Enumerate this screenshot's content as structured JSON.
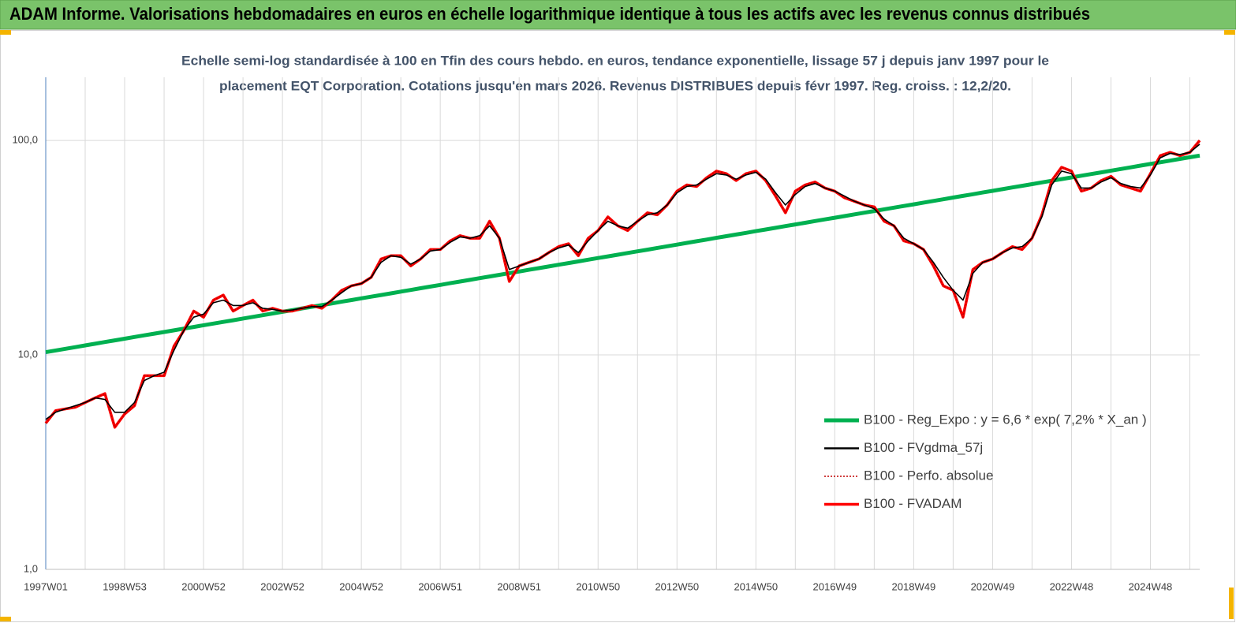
{
  "chart_data": {
    "type": "line",
    "title": "ADAM Informe. Valorisations hebdomadaires en euros en échelle logarithmique identique à tous les actifs avec les revenus connus distribués",
    "subtitle": [
      "Echelle semi-log standardisée à 100 en Tfin des cours hebdo. en euros, tendance exponentielle, lissage 57 j depuis janv 1997 pour le",
      "placement EQT Corporation. Cotations jusqu'en mars 2026.  Revenus DISTRIBUES depuis févr 1997. Reg. croiss. : 12,2/20."
    ],
    "log_scale": true,
    "grid": true,
    "legend": "right",
    "ylim": [
      1,
      197
    ],
    "yticks": [
      {
        "value": 1,
        "label": "1,0"
      },
      {
        "value": 10,
        "label": "10,0"
      },
      {
        "value": 100,
        "label": "100,0"
      }
    ],
    "categories": [
      "1997W01",
      null,
      null,
      null,
      null,
      null,
      null,
      null,
      "1998W53",
      null,
      null,
      null,
      null,
      null,
      null,
      null,
      "2000W52",
      null,
      null,
      null,
      null,
      null,
      null,
      null,
      "2002W52",
      null,
      null,
      null,
      null,
      null,
      null,
      null,
      "2004W52",
      null,
      null,
      null,
      null,
      null,
      null,
      null,
      "2006W51",
      null,
      null,
      null,
      null,
      null,
      null,
      null,
      "2008W51",
      null,
      null,
      null,
      null,
      null,
      null,
      null,
      "2010W50",
      null,
      null,
      null,
      null,
      null,
      null,
      null,
      "2012W50",
      null,
      null,
      null,
      null,
      null,
      null,
      null,
      "2014W50",
      null,
      null,
      null,
      null,
      null,
      null,
      null,
      "2016W49",
      null,
      null,
      null,
      null,
      null,
      null,
      null,
      "2018W49",
      null,
      null,
      null,
      null,
      null,
      null,
      null,
      "2020W49",
      null,
      null,
      null,
      null,
      null,
      null,
      null,
      "2022W48",
      null,
      null,
      null,
      null,
      null,
      null,
      null,
      "2024W48",
      null,
      null,
      null,
      null,
      null
    ],
    "series": [
      {
        "name": "B100 - Reg_Expo : y = 6,6 * exp( 7,2% *  X_an )",
        "color": "#00b050",
        "line_style": "solid",
        "values": [
          10.3,
          10.49,
          10.68,
          10.87,
          11.07,
          11.27,
          11.48,
          11.69,
          11.9,
          12.12,
          12.34,
          12.56,
          12.79,
          13.02,
          13.26,
          13.5,
          13.75,
          14.0,
          14.25,
          14.51,
          14.78,
          15.05,
          15.32,
          15.6,
          15.88,
          16.17,
          16.47,
          16.77,
          17.07,
          17.38,
          17.7,
          18.02,
          18.35,
          18.68,
          19.02,
          19.37,
          19.72,
          20.08,
          20.45,
          20.82,
          21.2,
          21.59,
          21.98,
          22.38,
          22.79,
          23.2,
          23.62,
          24.05,
          24.49,
          24.94,
          25.39,
          25.85,
          26.32,
          26.8,
          27.29,
          27.79,
          28.29,
          28.81,
          29.33,
          29.86,
          30.41,
          30.96,
          31.52,
          32.1,
          32.68,
          33.28,
          33.88,
          34.5,
          35.13,
          35.77,
          36.42,
          37.08,
          37.76,
          38.44,
          39.14,
          39.86,
          40.58,
          41.32,
          42.07,
          42.84,
          43.62,
          44.41,
          45.22,
          46.04,
          46.88,
          47.73,
          48.6,
          49.48,
          50.38,
          51.3,
          52.23,
          53.18,
          54.15,
          55.14,
          56.14,
          57.16,
          58.2,
          59.26,
          60.34,
          61.44,
          62.56,
          63.7,
          64.86,
          66.04,
          67.24,
          68.46,
          69.71,
          70.98,
          72.27,
          73.59,
          74.93,
          76.29,
          77.68,
          79.09,
          80.53,
          82.0,
          83.49,
          85.01
        ]
      },
      {
        "name": "B100 - FVgdma_57j",
        "color": "#000000",
        "line_style": "solid",
        "values": [
          5.0,
          5.4,
          5.6,
          5.8,
          6.0,
          6.3,
          6.2,
          5.4,
          5.4,
          6.0,
          7.6,
          8.0,
          8.3,
          10.5,
          13,
          15,
          15.5,
          17.5,
          18,
          17,
          17,
          17.5,
          16.5,
          16.3,
          16,
          16.2,
          16.5,
          16.8,
          16.8,
          18,
          19.5,
          21,
          21.5,
          23,
          27,
          29,
          28.5,
          26.5,
          28,
          30.5,
          31,
          33.5,
          35.5,
          35,
          36,
          40,
          35,
          25,
          26,
          27,
          28,
          30,
          31.5,
          32.5,
          30,
          34,
          38,
          42,
          40,
          39,
          42,
          45,
          46,
          50,
          57,
          61,
          62,
          66,
          70,
          69,
          66,
          69,
          71,
          66,
          57,
          50,
          56,
          61,
          63,
          60,
          58,
          55,
          52,
          50,
          48,
          43,
          40,
          35,
          33,
          31,
          27,
          23,
          20,
          18,
          24,
          27,
          28,
          30,
          31.5,
          32,
          35,
          44,
          62,
          72,
          70,
          60,
          60,
          64,
          67,
          63,
          61,
          60,
          69,
          83,
          87,
          86,
          88,
          96
        ]
      },
      {
        "name": "B100 - Perfo. absolue",
        "color": "#c00000",
        "line_style": "dotted",
        "values": [
          4.8,
          5.5,
          5.6,
          5.7,
          6.0,
          6.3,
          6.6,
          4.6,
          5.3,
          5.8,
          8.0,
          8.0,
          8.0,
          11,
          13,
          16,
          15,
          18,
          19,
          16,
          17,
          18,
          16,
          16.5,
          16,
          16,
          16.5,
          17,
          16.5,
          18,
          20,
          21,
          21.5,
          23,
          28,
          29,
          29,
          26,
          28,
          31,
          31,
          34,
          36,
          35,
          35,
          42,
          35,
          22,
          26,
          27,
          28,
          30,
          32,
          33,
          29,
          35,
          38,
          44,
          40,
          38,
          42,
          46,
          45,
          50,
          58,
          62,
          61,
          67,
          72,
          70,
          65,
          70,
          72,
          65,
          55,
          46,
          58,
          62,
          64,
          60,
          58,
          54,
          52,
          50,
          49,
          42,
          40,
          34,
          33,
          31,
          26,
          21,
          20,
          15,
          25,
          27,
          28,
          30,
          32,
          31,
          35,
          45,
          65,
          75,
          72,
          58,
          60,
          65,
          68,
          62,
          60,
          58,
          70,
          85,
          88,
          85,
          88,
          100
        ]
      },
      {
        "name": "B100 - FVADAM",
        "color": "#ff0000",
        "line_style": "solid",
        "values": [
          4.8,
          5.5,
          5.6,
          5.7,
          6.0,
          6.3,
          6.6,
          4.6,
          5.3,
          5.8,
          8.0,
          8.0,
          8.0,
          11,
          13,
          16,
          15,
          18,
          19,
          16,
          17,
          18,
          16,
          16.5,
          16,
          16,
          16.5,
          17,
          16.5,
          18,
          20,
          21,
          21.5,
          23,
          28,
          29,
          29,
          26,
          28,
          31,
          31,
          34,
          36,
          35,
          35,
          42,
          35,
          22,
          26,
          27,
          28,
          30,
          32,
          33,
          29,
          35,
          38,
          44,
          40,
          38,
          42,
          46,
          45,
          50,
          58,
          62,
          61,
          67,
          72,
          70,
          65,
          70,
          72,
          65,
          55,
          46,
          58,
          62,
          64,
          60,
          58,
          54,
          52,
          50,
          49,
          42,
          40,
          34,
          33,
          31,
          26,
          21,
          20,
          15,
          25,
          27,
          28,
          30,
          32,
          31,
          35,
          45,
          65,
          75,
          72,
          58,
          60,
          65,
          68,
          62,
          60,
          58,
          70,
          85,
          88,
          85,
          88,
          100
        ]
      }
    ]
  }
}
